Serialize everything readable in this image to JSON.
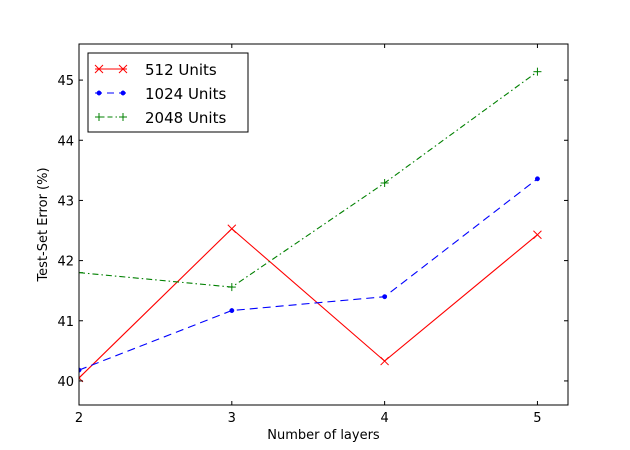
{
  "chart_data": {
    "type": "line",
    "title": "",
    "xlabel": "Number of layers",
    "ylabel": "Test-Set Error (%)",
    "xlim": [
      2,
      5.2
    ],
    "ylim": [
      39.6,
      45.6
    ],
    "xticks": [
      "2",
      "3",
      "4",
      "5"
    ],
    "yticks": [
      "40",
      "41",
      "42",
      "43",
      "44",
      "45"
    ],
    "grid": false,
    "legend_position": "top-left",
    "series": [
      {
        "name": "512 Units",
        "color": "#ff0000",
        "dash": "solid",
        "marker": "x",
        "x": [
          2,
          3,
          4,
          5
        ],
        "y": [
          40.05,
          42.53,
          40.33,
          42.43
        ]
      },
      {
        "name": "1024 Units",
        "color": "#0000ff",
        "dash": "dashed",
        "marker": "point",
        "x": [
          2,
          3,
          4,
          5
        ],
        "y": [
          40.18,
          41.17,
          41.4,
          43.36
        ]
      },
      {
        "name": "2048 Units",
        "color": "#008000",
        "dash": "dashdot",
        "marker": "plus",
        "x": [
          2,
          3,
          4,
          5
        ],
        "y": [
          41.8,
          41.56,
          43.29,
          45.14
        ]
      }
    ]
  }
}
